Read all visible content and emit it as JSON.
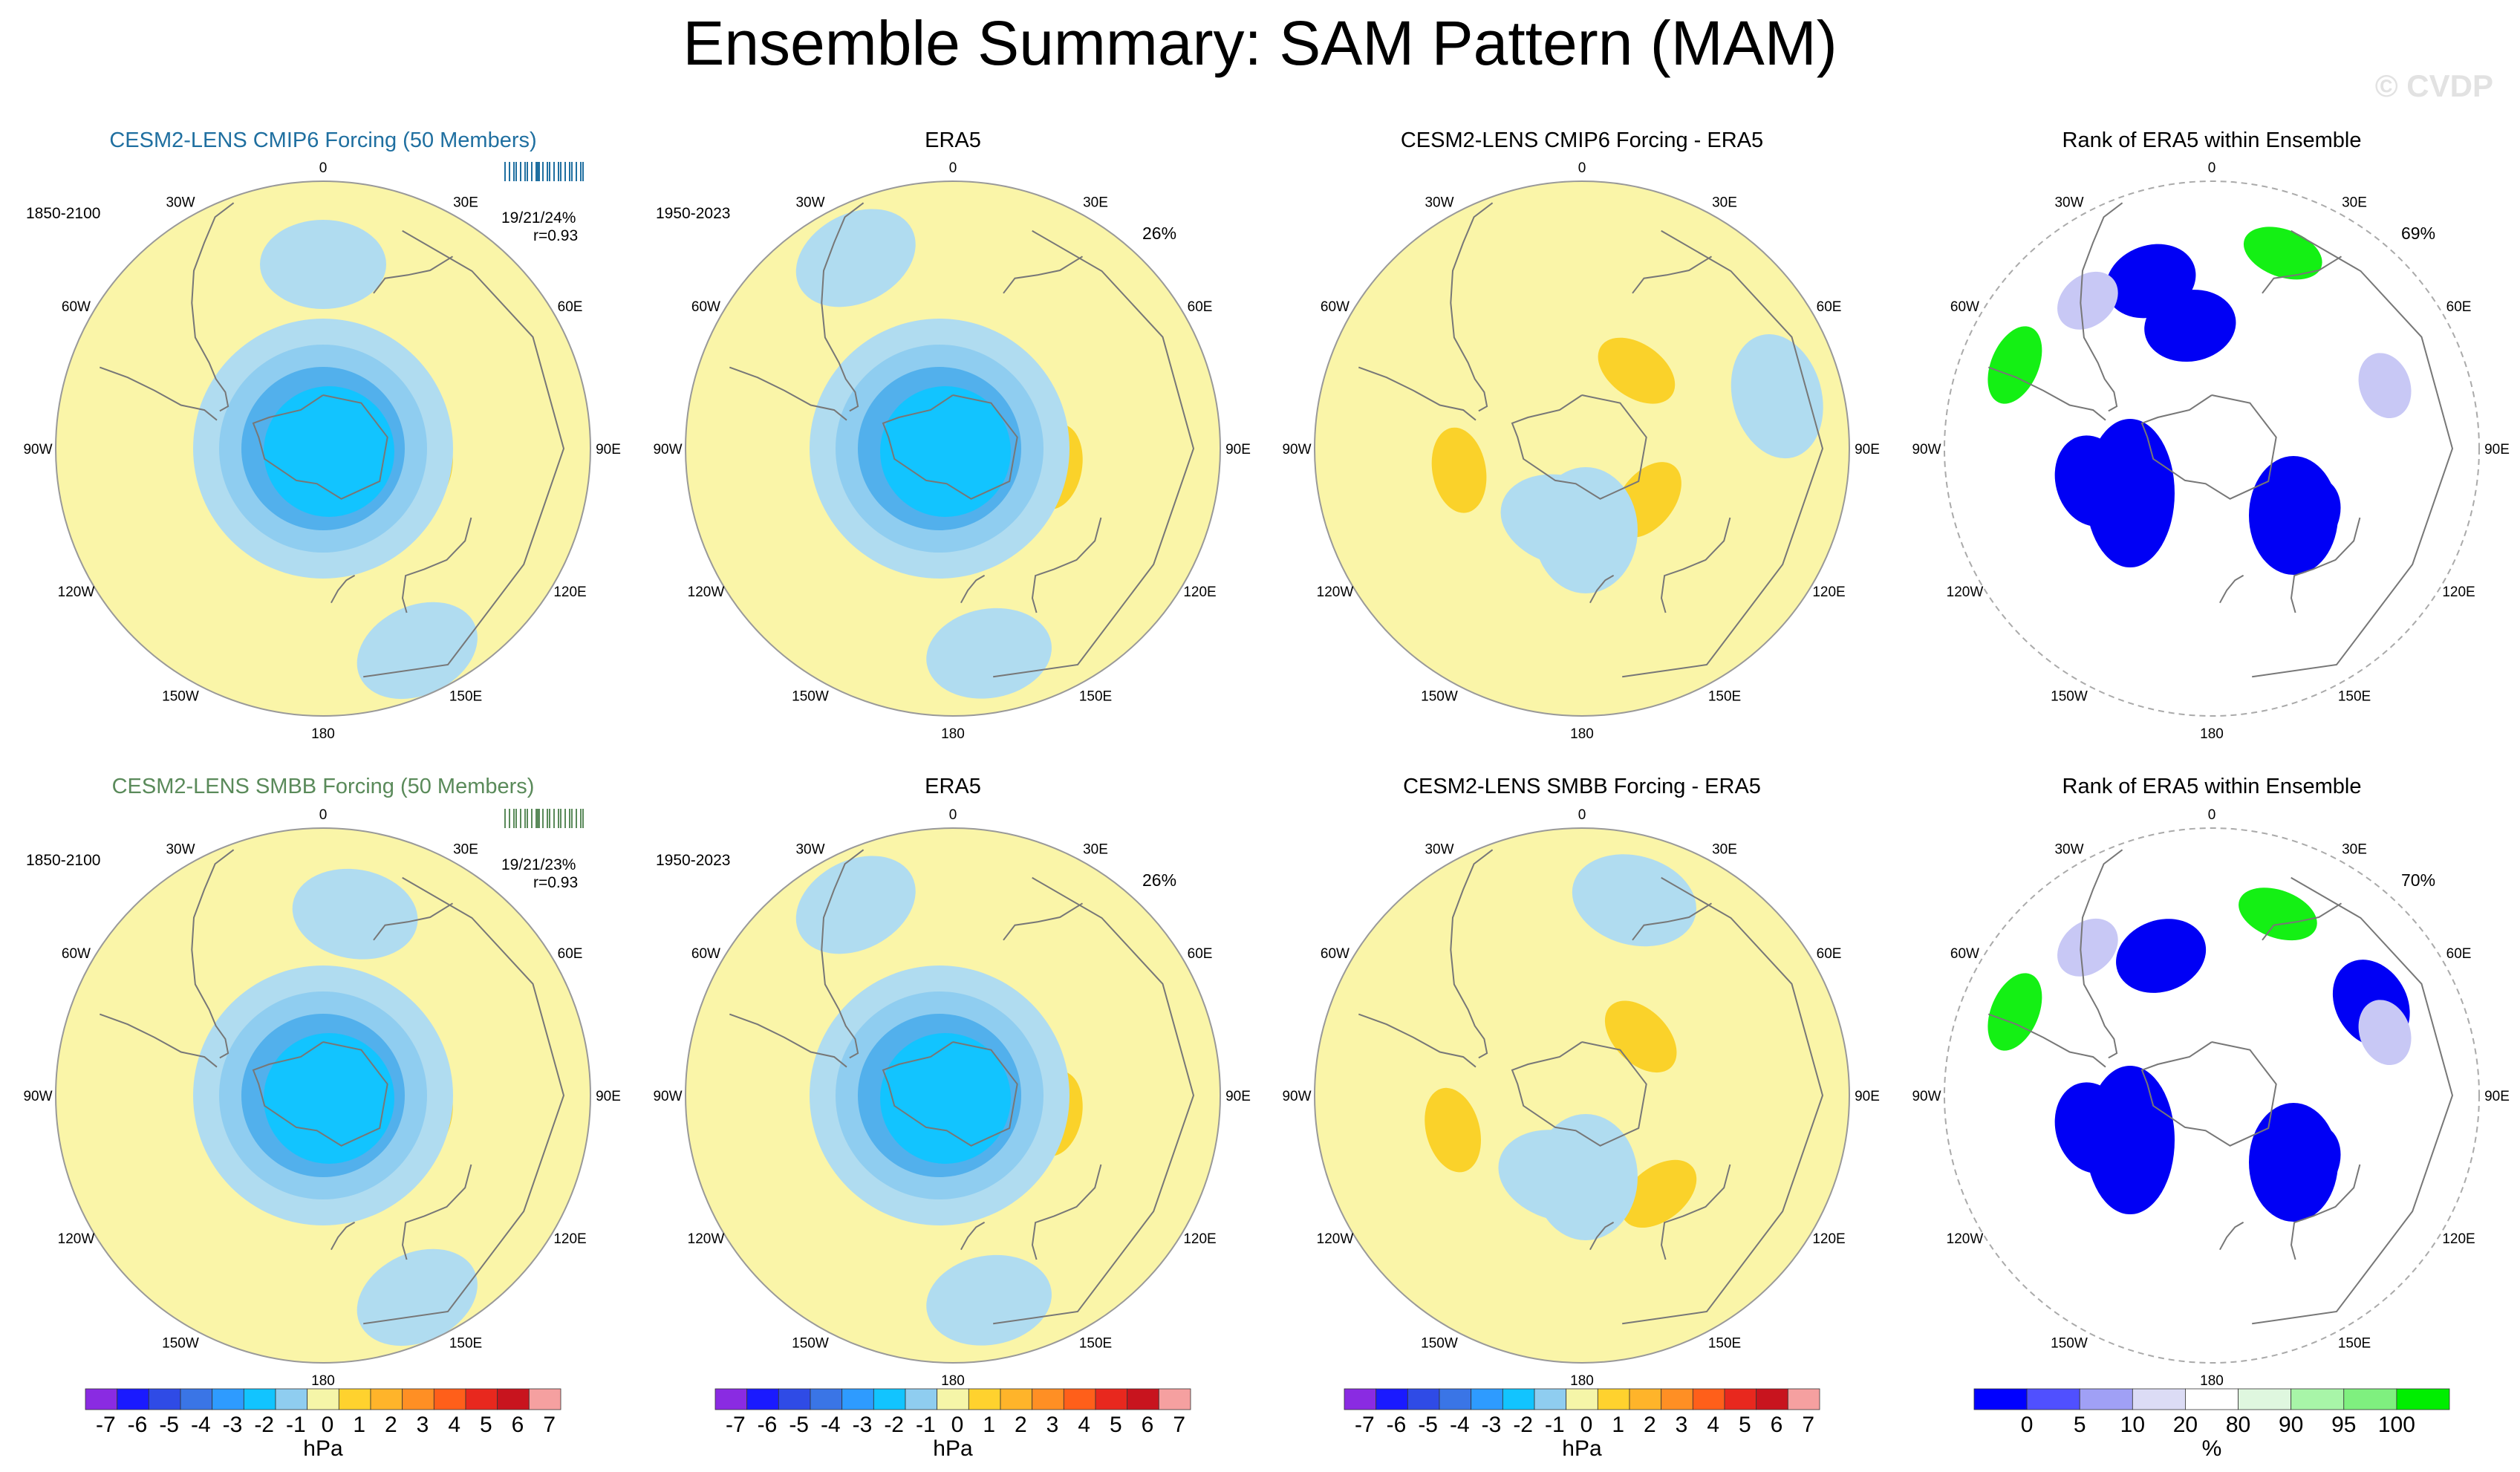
{
  "figure": {
    "title": "Ensemble Summary: SAM Pattern (MAM)",
    "watermark": "© CVDP"
  },
  "colors": {
    "hpa_levels": [
      "#8a2be2",
      "#1a1aff",
      "#2f4be6",
      "#3a75e6",
      "#2e9bff",
      "#12c4ff",
      "#8fcdf0",
      "#f5f5a8",
      "#ffd22e",
      "#ffb42a",
      "#ff8f24",
      "#ff5f1a",
      "#e8281e",
      "#c8141e",
      "#f5a0a0"
    ],
    "rank_levels": [
      "#0000ff",
      "#5050ff",
      "#a0a0f5",
      "#dcdcf5",
      "#ffffff",
      "#dff7df",
      "#a8f5a8",
      "#7ff07f",
      "#00ee00"
    ],
    "pos": "#fad22a",
    "neg": "#b0dcf0",
    "neutral": "#faf5a8",
    "rank_low": "#0000f5",
    "rank_mid": "#5a5af5",
    "rank_high": "#14f014",
    "land": "#777777",
    "title_row1": "#1f6fa0",
    "title_row2": "#5a8a5a"
  },
  "map_labels": {
    "top": "0",
    "bottom": "180",
    "left": [
      "30W",
      "60W",
      "90W",
      "120W",
      "150W"
    ],
    "right": [
      "30E",
      "60E",
      "90E",
      "120E",
      "150E"
    ]
  },
  "colorbars": {
    "hpa": {
      "labels": [
        "-7",
        "-6",
        "-5",
        "-4",
        "-3",
        "-2",
        "-1",
        "0",
        "1",
        "2",
        "3",
        "4",
        "5",
        "6",
        "7"
      ],
      "unit": "hPa"
    },
    "rank": {
      "labels": [
        "0",
        "5",
        "10",
        "20",
        "80",
        "90",
        "95",
        "100"
      ],
      "unit": "%"
    }
  },
  "chart_data": [
    {
      "type": "heatmap",
      "title": "CESM2-LENS CMIP6 Forcing (50 Members)",
      "period": "1850-2100",
      "stats": "19/21/24%",
      "corr": "r=0.93",
      "style": "ens",
      "row": 1,
      "features": [
        {
          "kind": "neg",
          "lon": 0,
          "colat": 62
        },
        {
          "kind": "pos",
          "lon": -60,
          "colat": 33
        },
        {
          "kind": "pos",
          "lon": 100,
          "colat": 35
        },
        {
          "kind": "pos",
          "lon": -132,
          "colat": 30
        },
        {
          "kind": "neg",
          "lon": 155,
          "colat": 75
        }
      ]
    },
    {
      "type": "heatmap",
      "title": "ERA5",
      "period": "1950-2023",
      "pct": "26%",
      "style": "obs",
      "row": 1,
      "features": [
        {
          "kind": "neg",
          "lon": -27,
          "colat": 72
        },
        {
          "kind": "pos",
          "lon": -55,
          "colat": 33
        },
        {
          "kind": "pos",
          "lon": 100,
          "colat": 35
        },
        {
          "kind": "pos",
          "lon": -150,
          "colat": 32
        },
        {
          "kind": "neg",
          "lon": 170,
          "colat": 70
        }
      ]
    },
    {
      "type": "heatmap",
      "title": "CESM2-LENS CMIP6 Forcing - ERA5",
      "style": "diff",
      "row": 1,
      "features": [
        {
          "kind": "pos",
          "lon": 35,
          "colat": 32
        },
        {
          "kind": "pos",
          "lon": -100,
          "colat": 42
        },
        {
          "kind": "pos",
          "lon": 128,
          "colat": 28
        },
        {
          "kind": "neg",
          "lon": -165,
          "colat": 25
        },
        {
          "kind": "neg",
          "lon": 75,
          "colat": 68
        }
      ]
    },
    {
      "type": "heatmap",
      "title": "Rank of ERA5 within Ensemble",
      "pct": "69%",
      "style": "rank",
      "row": 1,
      "features": [
        {
          "kind": "low",
          "lon": -10,
          "colat": 42
        },
        {
          "kind": "low",
          "lon": -105,
          "colat": 42
        },
        {
          "kind": "low",
          "lon": 128,
          "colat": 38
        },
        {
          "kind": "low",
          "lon": -20,
          "colat": 60
        },
        {
          "kind": "high",
          "lon": 20,
          "colat": 70
        },
        {
          "kind": "high",
          "lon": -67,
          "colat": 72
        },
        {
          "kind": "mid",
          "lon": 70,
          "colat": 62
        },
        {
          "kind": "mid",
          "lon": -40,
          "colat": 65
        }
      ]
    },
    {
      "type": "heatmap",
      "title": "CESM2-LENS SMBB Forcing (50 Members)",
      "period": "1850-2100",
      "stats": "19/21/23%",
      "corr": "r=0.93",
      "style": "ens",
      "row": 2,
      "features": [
        {
          "kind": "neg",
          "lon": 10,
          "colat": 62
        },
        {
          "kind": "pos",
          "lon": -55,
          "colat": 33
        },
        {
          "kind": "pos",
          "lon": 100,
          "colat": 35
        },
        {
          "kind": "pos",
          "lon": -135,
          "colat": 32
        },
        {
          "kind": "neg",
          "lon": 155,
          "colat": 75
        }
      ]
    },
    {
      "type": "heatmap",
      "title": "ERA5",
      "period": "1950-2023",
      "pct": "26%",
      "style": "obs",
      "row": 2,
      "features": [
        {
          "kind": "neg",
          "lon": -27,
          "colat": 72
        },
        {
          "kind": "pos",
          "lon": -55,
          "colat": 33
        },
        {
          "kind": "pos",
          "lon": 100,
          "colat": 35
        },
        {
          "kind": "pos",
          "lon": -150,
          "colat": 32
        },
        {
          "kind": "neg",
          "lon": 170,
          "colat": 70
        }
      ]
    },
    {
      "type": "heatmap",
      "title": "CESM2-LENS SMBB Forcing - ERA5",
      "style": "diff",
      "row": 2,
      "features": [
        {
          "kind": "pos",
          "lon": 45,
          "colat": 28
        },
        {
          "kind": "pos",
          "lon": -105,
          "colat": 45
        },
        {
          "kind": "pos",
          "lon": 142,
          "colat": 42
        },
        {
          "kind": "neg",
          "lon": -165,
          "colat": 28
        },
        {
          "kind": "neg",
          "lon": 15,
          "colat": 68
        }
      ]
    },
    {
      "type": "heatmap",
      "title": "Rank of ERA5 within Ensemble",
      "pct": "70%",
      "style": "rank",
      "row": 2,
      "features": [
        {
          "kind": "low",
          "lon": -20,
          "colat": 50
        },
        {
          "kind": "low",
          "lon": -105,
          "colat": 42
        },
        {
          "kind": "low",
          "lon": 128,
          "colat": 38
        },
        {
          "kind": "low",
          "lon": 60,
          "colat": 62
        },
        {
          "kind": "high",
          "lon": 20,
          "colat": 65
        },
        {
          "kind": "high",
          "lon": -67,
          "colat": 72
        },
        {
          "kind": "mid",
          "lon": 70,
          "colat": 62
        },
        {
          "kind": "mid",
          "lon": -40,
          "colat": 65
        }
      ]
    }
  ]
}
